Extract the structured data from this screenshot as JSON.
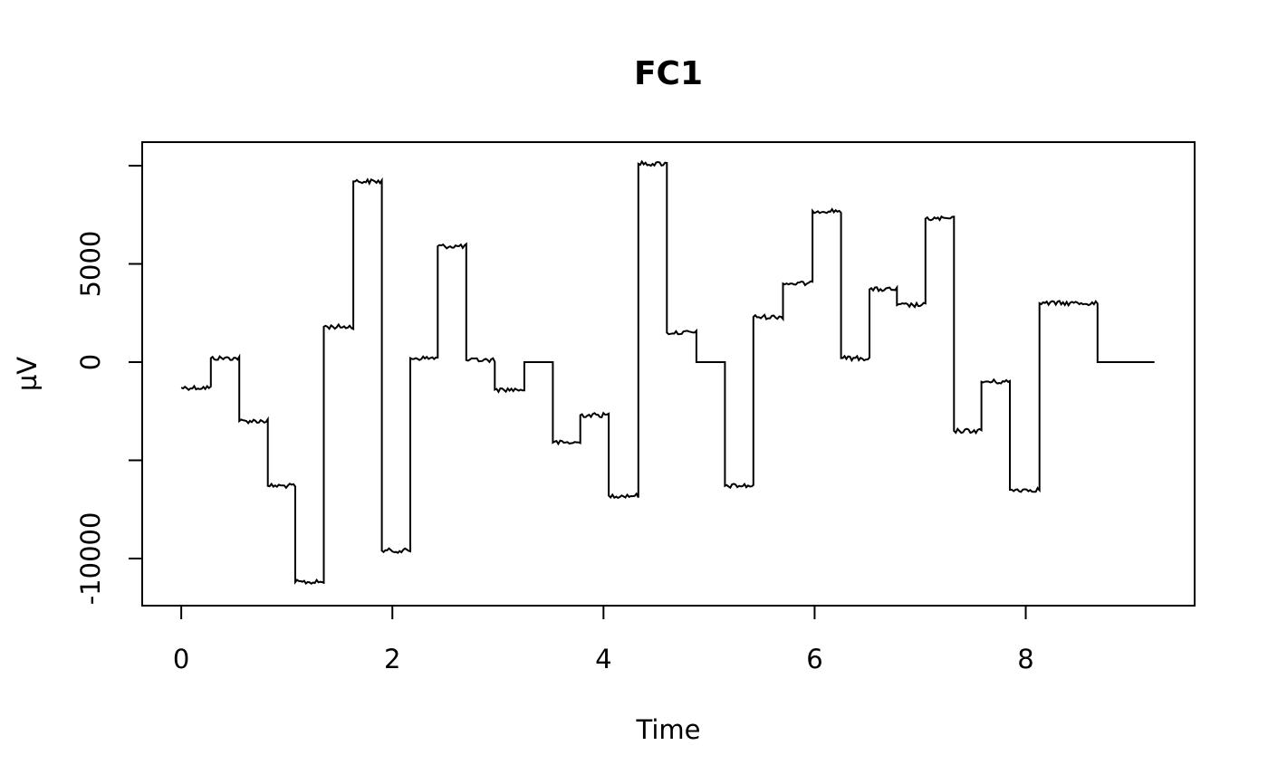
{
  "chart_data": {
    "type": "line",
    "title": "FC1",
    "xlabel": "Time",
    "ylabel": "µV",
    "xlim": [
      -0.37,
      9.6
    ],
    "ylim": [
      -12400,
      11200
    ],
    "x_ticks": [
      0,
      2,
      4,
      6,
      8
    ],
    "x_tick_labels": [
      "0",
      "2",
      "4",
      "6",
      "8"
    ],
    "y_ticks": [
      -10000,
      -5000,
      0,
      5000,
      10000
    ],
    "y_tick_labels": [
      "-10000",
      "",
      "0",
      "5000",
      ""
    ],
    "grid": false,
    "legend": "none",
    "color": "#000000",
    "series": [
      {
        "steps": [
          [
            0.0,
            0.28,
            -1300
          ],
          [
            0.28,
            0.55,
            200
          ],
          [
            0.55,
            0.82,
            -3000
          ],
          [
            0.82,
            1.08,
            -6300
          ],
          [
            1.08,
            1.35,
            -11200
          ],
          [
            1.35,
            1.63,
            1800
          ],
          [
            1.63,
            1.9,
            9200
          ],
          [
            1.9,
            2.17,
            -9600
          ],
          [
            2.17,
            2.43,
            200
          ],
          [
            2.43,
            2.7,
            5900
          ],
          [
            2.7,
            2.97,
            100
          ],
          [
            2.97,
            3.25,
            -1400
          ],
          [
            3.25,
            3.52,
            0
          ],
          [
            3.52,
            3.78,
            -4100
          ],
          [
            3.78,
            4.05,
            -2700
          ],
          [
            4.05,
            4.33,
            -6800
          ],
          [
            4.33,
            4.6,
            10100
          ],
          [
            4.6,
            4.88,
            1500
          ],
          [
            4.88,
            5.15,
            0
          ],
          [
            5.15,
            5.42,
            -6300
          ],
          [
            5.42,
            5.7,
            2300
          ],
          [
            5.7,
            5.98,
            4000
          ],
          [
            5.98,
            6.25,
            7700
          ],
          [
            6.25,
            6.52,
            200
          ],
          [
            6.52,
            6.78,
            3700
          ],
          [
            6.78,
            7.05,
            2900
          ],
          [
            7.05,
            7.32,
            7300
          ],
          [
            7.32,
            7.58,
            -3500
          ],
          [
            7.58,
            7.85,
            -1000
          ],
          [
            7.85,
            8.13,
            -6500
          ],
          [
            8.13,
            8.68,
            3000
          ],
          [
            8.68,
            9.22,
            0
          ]
        ]
      }
    ]
  }
}
